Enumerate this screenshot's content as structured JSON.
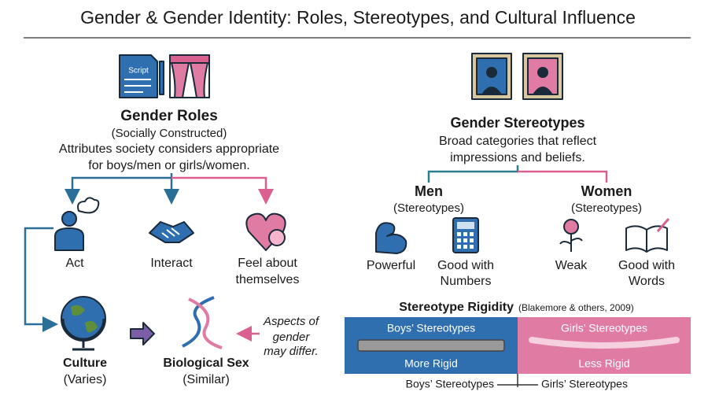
{
  "title": "Gender & Gender Identity: Roles, Stereotypes, and Cultural Influence",
  "roles": {
    "icon_label": "Script",
    "heading": "Gender Roles",
    "subheading": "(Socially Constructed)",
    "description": [
      "Attributes society considers appropriate",
      "for boys/men or girls/women."
    ],
    "branches": [
      [
        "Act"
      ],
      [
        "Interact"
      ],
      [
        "Feel about",
        "themselves"
      ]
    ]
  },
  "culture": {
    "label": "Culture",
    "sub": "(Varies)"
  },
  "biology": {
    "label": "Biological Sex",
    "sub": "(Similar)"
  },
  "note": [
    "Aspects of",
    "gender",
    "may differ."
  ],
  "stereotypes": {
    "heading": "Gender Stereotypes",
    "description": [
      "Broad categories that reflect",
      "impressions and beliefs."
    ],
    "groups": [
      {
        "heading": "Men",
        "sub": "(Stereotypes)",
        "traits": [
          [
            "Powerful"
          ],
          [
            "Good with",
            "Numbers"
          ]
        ]
      },
      {
        "heading": "Women",
        "sub": "(Stereotypes)",
        "traits": [
          [
            "Weak"
          ],
          [
            "Good with",
            "Words"
          ]
        ]
      }
    ]
  },
  "rigidity": {
    "title": "Stereotype Rigidity",
    "citation": "(Blakemore & others, 2009)",
    "boys": {
      "label": "Boys’ Stereotypes",
      "level": "More Rigid"
    },
    "girls": {
      "label": "Girls’ Stereotypes",
      "level": "Less Rigid"
    },
    "footer": [
      "Boys’ Stereotypes",
      "Girls’ Stereotypes"
    ]
  }
}
